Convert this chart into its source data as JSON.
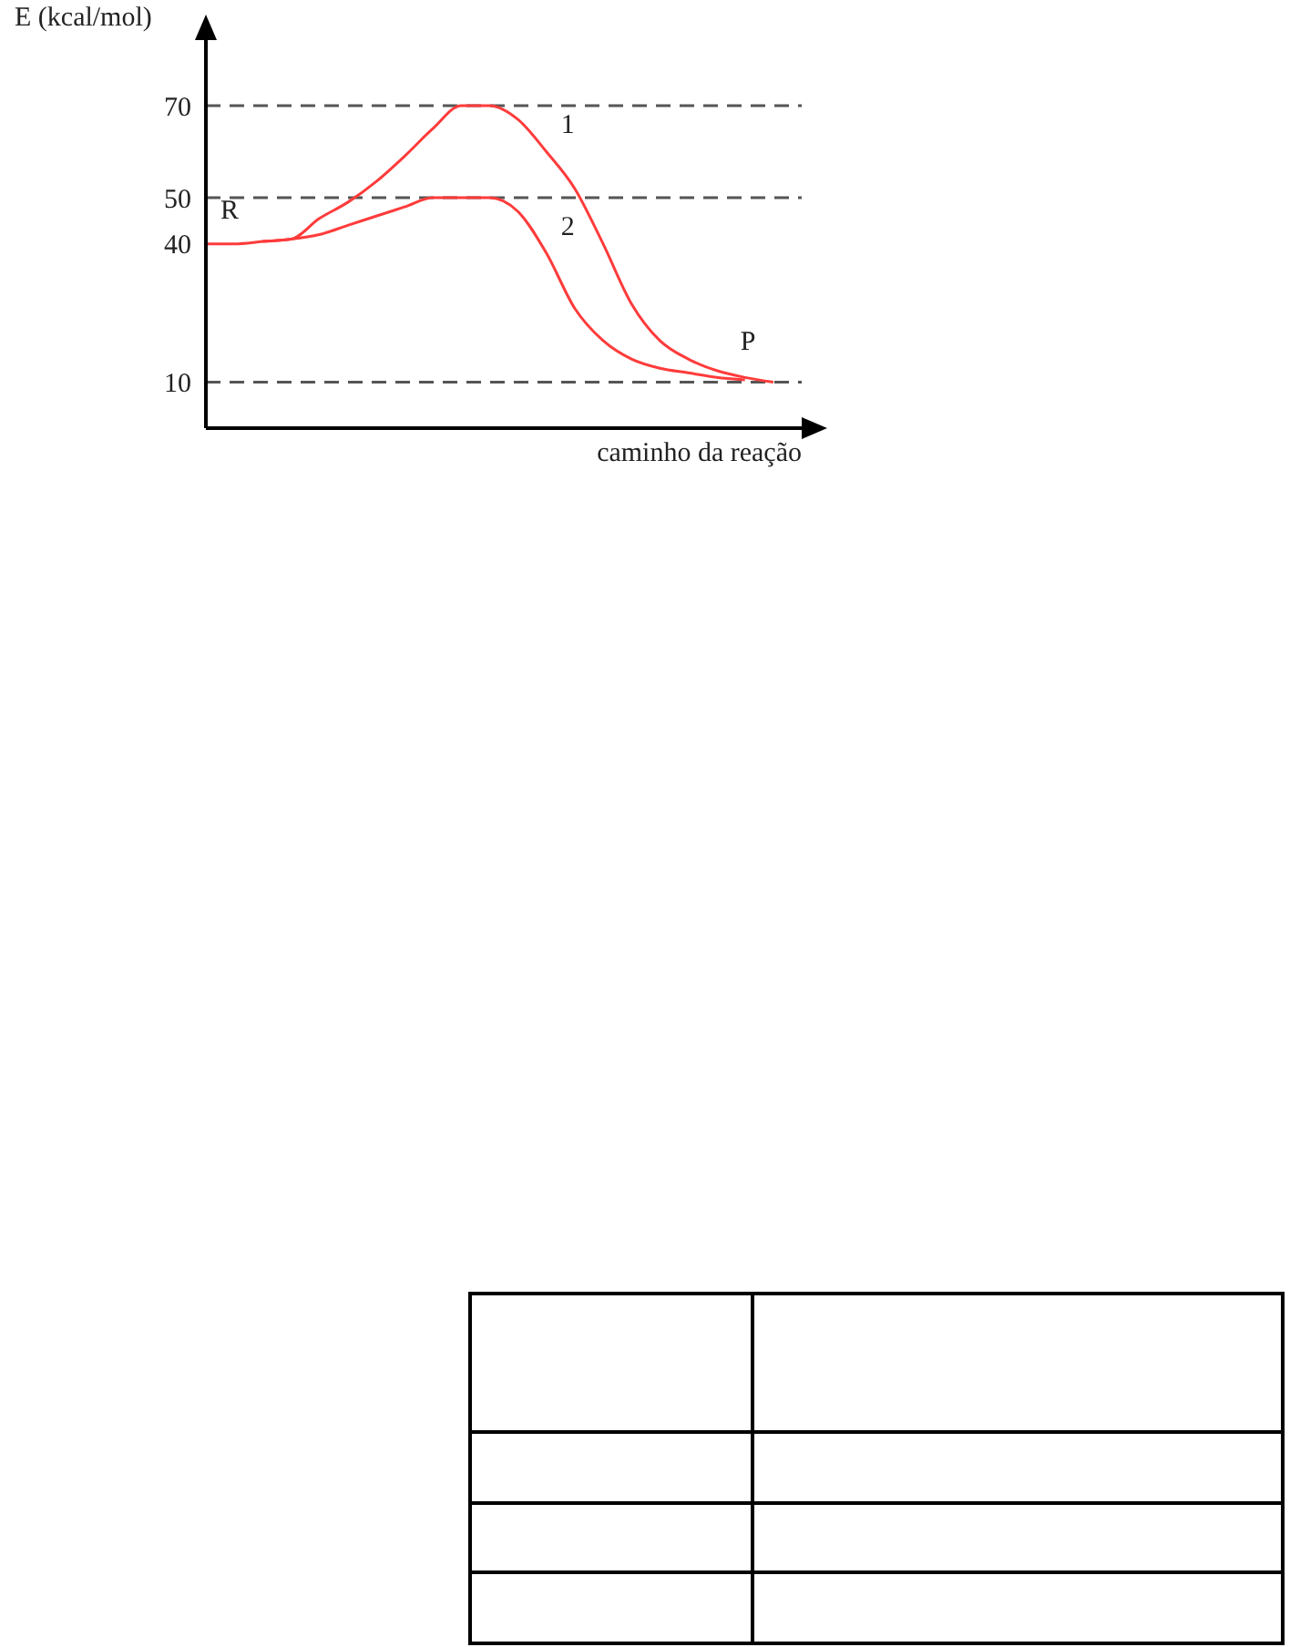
{
  "chart_data": {
    "type": "line",
    "ylabel": "E (kcal/mol)",
    "xlabel": "caminho da reação",
    "categories": [
      null,
      null,
      null,
      null,
      null,
      null,
      null,
      null,
      null,
      null,
      null,
      null,
      null,
      null,
      null,
      null,
      null,
      null,
      null,
      null,
      null
    ],
    "series": [
      {
        "name": "1",
        "color": "#ff3b3b",
        "values": [
          40,
          40,
          40.5,
          41,
          45.5,
          49,
          53.5,
          59,
          65,
          70,
          70,
          67,
          60,
          52,
          40,
          27,
          19,
          15,
          12.5,
          11,
          10
        ]
      },
      {
        "name": "2",
        "color": "#ff3b3b",
        "values": [
          null,
          null,
          40.5,
          41,
          42,
          44,
          46,
          48,
          50,
          50,
          50,
          47,
          38,
          26,
          19,
          15,
          13,
          12,
          11,
          10.5,
          null
        ]
      }
    ],
    "ylim": [
      0,
      85
    ],
    "yticks": [
      10,
      40,
      50,
      70
    ],
    "tick_labels": "y",
    "grid": false,
    "legend": false,
    "marker": "none",
    "line_style": "solid",
    "ref_lines": [
      {
        "axis": "y",
        "value": 70,
        "line_style": "dashed",
        "color": "#555555"
      },
      {
        "axis": "y",
        "value": 50,
        "line_style": "dashed",
        "color": "#555555"
      },
      {
        "axis": "y",
        "value": 10,
        "line_style": "dashed",
        "color": "#555555"
      }
    ],
    "annotations": [
      "R",
      "P"
    ]
  }
}
